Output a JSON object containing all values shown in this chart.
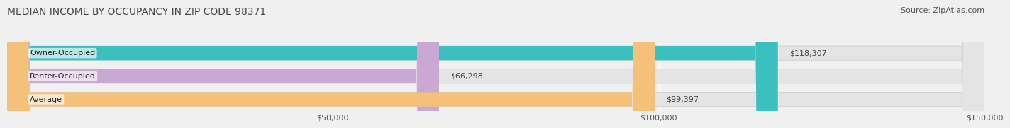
{
  "title": "MEDIAN INCOME BY OCCUPANCY IN ZIP CODE 98371",
  "source": "Source: ZipAtlas.com",
  "categories": [
    "Owner-Occupied",
    "Renter-Occupied",
    "Average"
  ],
  "values": [
    118307,
    66298,
    99397
  ],
  "bar_colors": [
    "#3bbfbf",
    "#c9a8d4",
    "#f5c07a"
  ],
  "bar_labels": [
    "$118,307",
    "$66,298",
    "$99,397"
  ],
  "xlim": [
    0,
    150000
  ],
  "xticks": [
    0,
    50000,
    100000,
    150000
  ],
  "xticklabels": [
    "",
    "$50,000",
    "$100,000",
    "$150,000"
  ],
  "background_color": "#f0f0f0",
  "bar_bg_color": "#e4e4e4",
  "title_fontsize": 10,
  "source_fontsize": 8,
  "label_fontsize": 8,
  "tick_fontsize": 8
}
